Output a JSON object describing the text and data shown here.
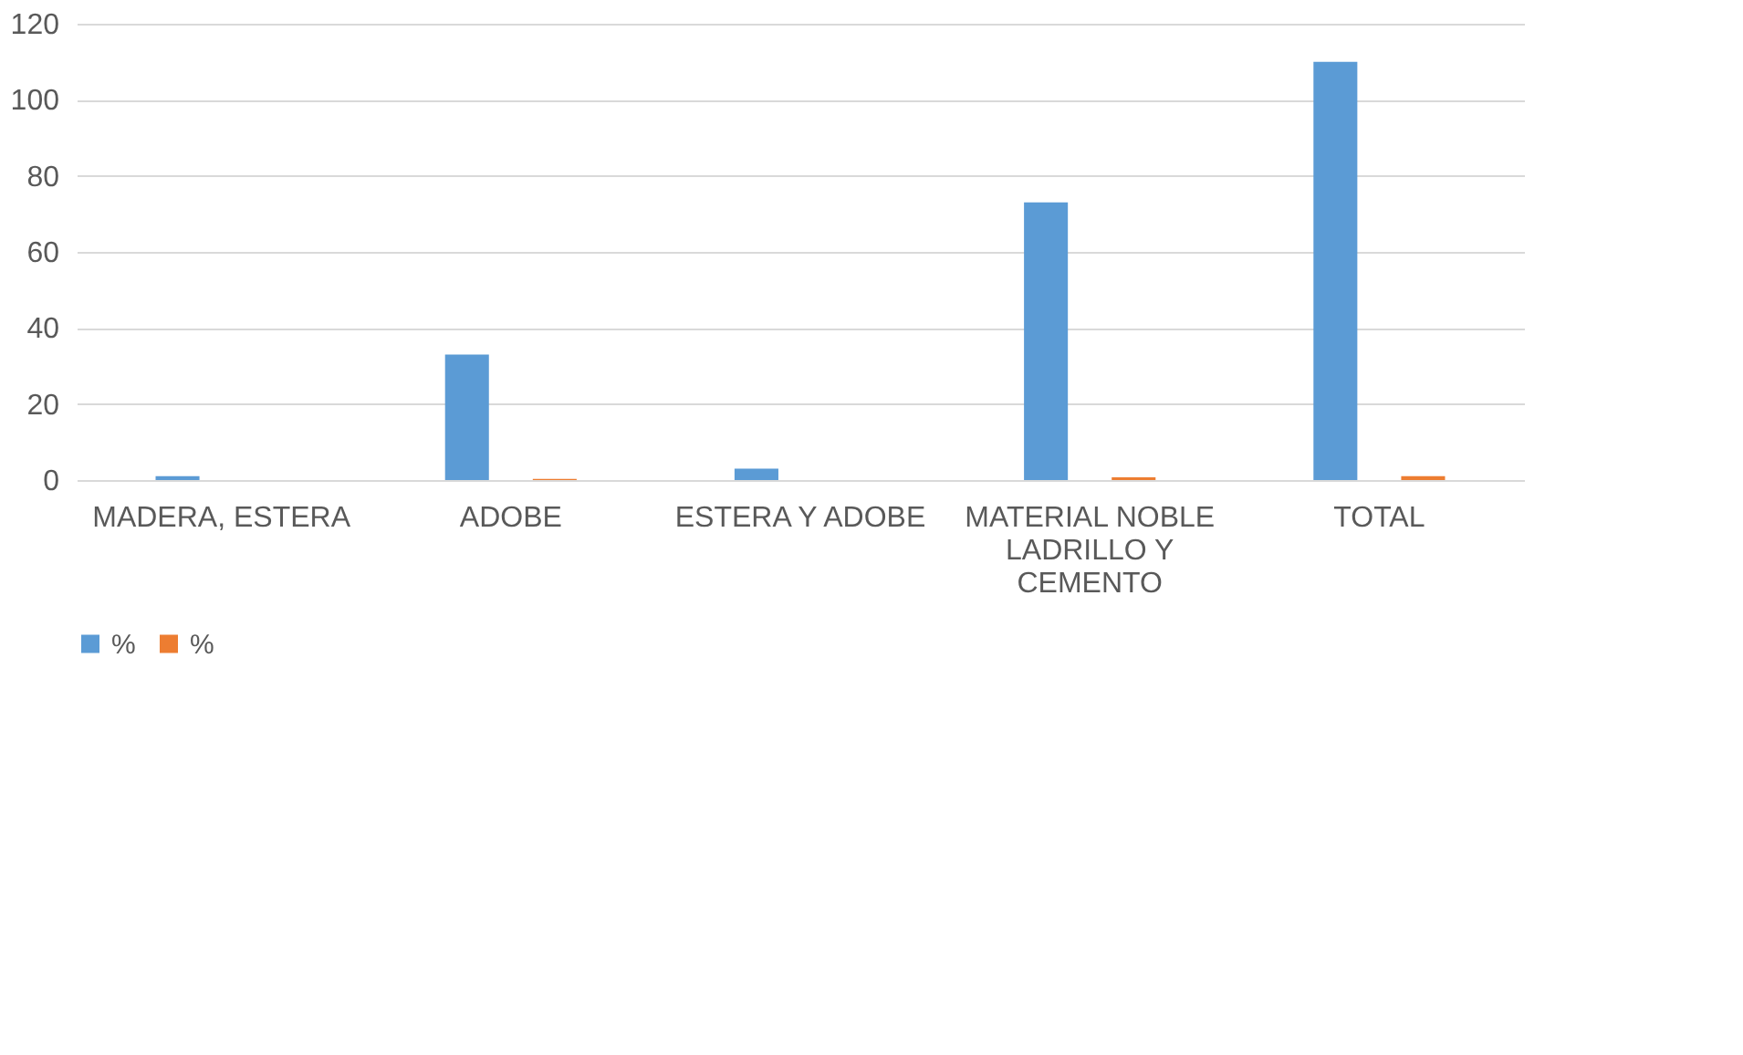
{
  "chart_data": {
    "type": "bar",
    "categories": [
      "MADERA, ESTERA",
      "ADOBE",
      "ESTERA Y ADOBE",
      "MATERIAL NOBLE LADRILLO Y CEMENTO",
      "TOTAL"
    ],
    "series": [
      {
        "name": "%",
        "color": "#5b9bd5",
        "values": [
          1,
          33,
          3,
          73,
          110
        ]
      },
      {
        "name": "%",
        "color": "#ed7d31",
        "values": [
          null,
          0.3,
          null,
          0.7,
          1
        ]
      }
    ],
    "ylim": [
      0,
      120
    ],
    "yticks": [
      0,
      20,
      40,
      60,
      80,
      100,
      120
    ],
    "grid": "y",
    "legend": "bottom"
  }
}
